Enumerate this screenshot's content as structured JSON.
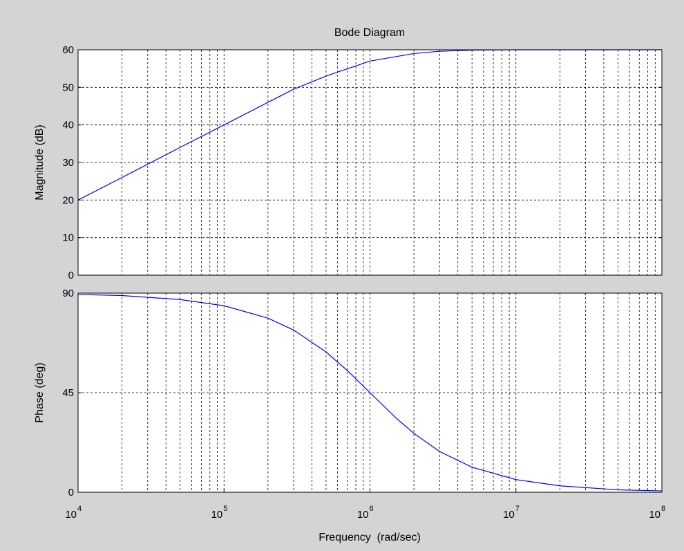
{
  "figure": {
    "background": "#d4d4d4",
    "axes_background": "#ffffff",
    "line_color": "#0000ff",
    "grid_color": "#000000"
  },
  "chart_data": [
    {
      "type": "line",
      "title": "Bode Diagram",
      "xlabel": "",
      "ylabel": "Magnitude (dB)",
      "xscale": "log",
      "xlim": [
        10000,
        100000000
      ],
      "ylim": [
        0,
        60
      ],
      "yticks": [
        0,
        10,
        20,
        30,
        40,
        50,
        60
      ],
      "ytick_labels": [
        "0",
        "10",
        "20",
        "30",
        "40",
        "50",
        "60"
      ],
      "grid": true,
      "series": [
        {
          "x": [
            10000,
            20000,
            50000,
            100000,
            200000,
            300000,
            500000,
            1000000,
            2000000,
            3000000,
            5000000,
            10000000,
            20000000,
            50000000,
            100000000
          ],
          "y": [
            20,
            26,
            34,
            40,
            46,
            49.5,
            53,
            57,
            59,
            59.6,
            59.9,
            60,
            60,
            60,
            60
          ]
        }
      ]
    },
    {
      "type": "line",
      "title": "",
      "xlabel": "Frequency  (rad/sec)",
      "ylabel": "Phase (deg)",
      "xscale": "log",
      "xlim": [
        10000,
        100000000
      ],
      "ylim": [
        0,
        90
      ],
      "yticks": [
        0,
        45,
        90
      ],
      "ytick_labels": [
        "0",
        "45",
        "90"
      ],
      "xticks": [
        10000,
        100000,
        1000000,
        10000000,
        100000000
      ],
      "xtick_labels": [
        {
          "base": "10",
          "exp": "4"
        },
        {
          "base": "10",
          "exp": "5"
        },
        {
          "base": "10",
          "exp": "6"
        },
        {
          "base": "10",
          "exp": "7"
        },
        {
          "base": "10",
          "exp": "8"
        }
      ],
      "grid": true,
      "series": [
        {
          "x": [
            10000,
            20000,
            50000,
            100000,
            200000,
            300000,
            500000,
            700000,
            1000000,
            1500000,
            2000000,
            3000000,
            5000000,
            10000000,
            20000000,
            50000000,
            100000000
          ],
          "y": [
            89.4,
            88.9,
            87.1,
            84.3,
            78.7,
            73.3,
            63.4,
            55.0,
            45.0,
            33.7,
            26.6,
            18.4,
            11.3,
            5.7,
            2.9,
            1.1,
            0.6
          ]
        }
      ]
    }
  ]
}
